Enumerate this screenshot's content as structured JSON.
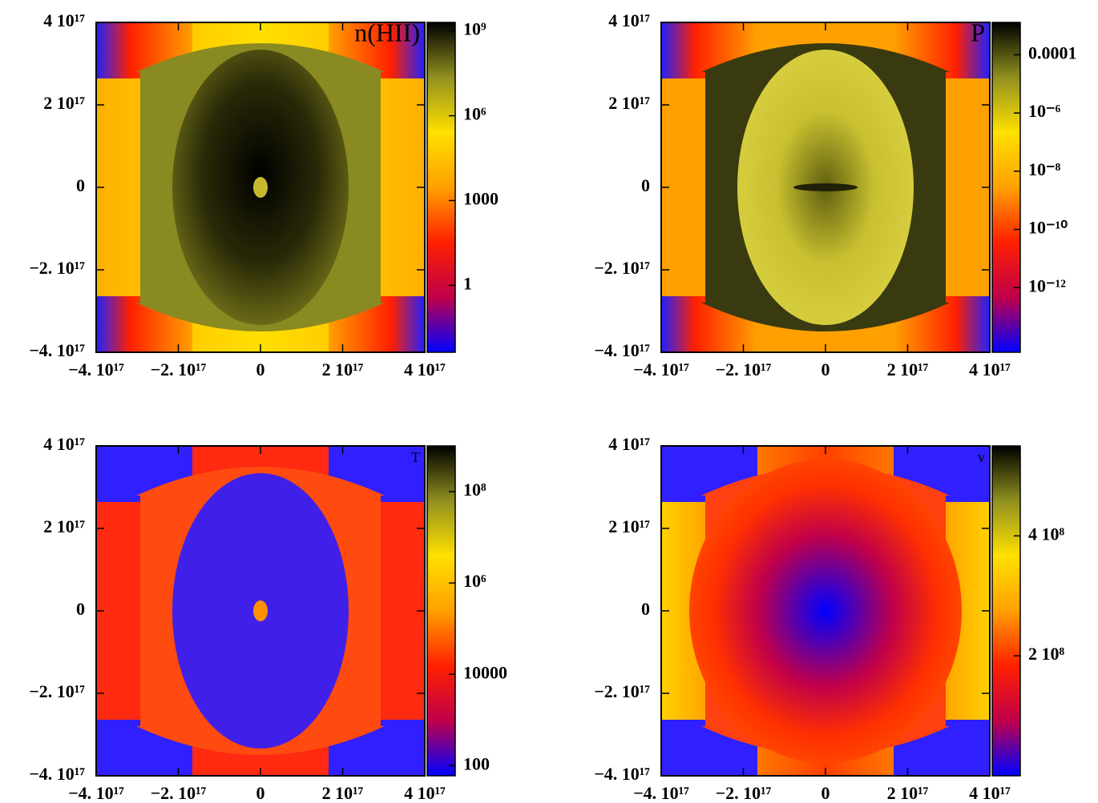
{
  "chart_data": [
    {
      "type": "image",
      "title": "n(HII)",
      "xlim": [
        -4e+17,
        4e+17
      ],
      "ylim": [
        -4e+17,
        4e+17
      ],
      "xticks": [
        {
          "value": -4e+17,
          "label": "−4. 10¹⁷"
        },
        {
          "value": -2e+17,
          "label": "−2. 10¹⁷"
        },
        0,
        {
          "value": 2e+17,
          "label": "2 10¹⁷"
        },
        {
          "value": 4e+17,
          "label": "4 10¹⁷"
        }
      ],
      "yticks": [
        {
          "value": -4e+17,
          "label": "−4. 10¹⁷"
        },
        {
          "value": -2e+17,
          "label": "−2. 10¹⁷"
        },
        0,
        {
          "value": 2e+17,
          "label": "2 10¹⁷"
        },
        {
          "value": 4e+17,
          "label": "4 10¹⁷"
        }
      ],
      "clim": [
        0.0043,
        2000000000
      ],
      "clog": true,
      "cticks": [
        1,
        1000,
        {
          "value": 1000000,
          "label": "10⁶"
        },
        {
          "value": 1000000000,
          "label": "10⁹"
        }
      ],
      "colormap": [
        "#0000ff",
        "#c0004a",
        "#ff2000",
        "#ffa000",
        "#ffe000",
        "#909020",
        "#000000"
      ]
    },
    {
      "type": "image",
      "title": "P",
      "xlim": [
        -4e+17,
        4e+17
      ],
      "ylim": [
        -4e+17,
        4e+17
      ],
      "xticks": [
        {
          "value": -4e+17,
          "label": "−4. 10¹⁷"
        },
        {
          "value": -2e+17,
          "label": "−2. 10¹⁷"
        },
        0,
        {
          "value": 2e+17,
          "label": "2 10¹⁷"
        },
        {
          "value": 4e+17,
          "label": "4 10¹⁷"
        }
      ],
      "yticks": [
        {
          "value": -4e+17,
          "label": "−4. 10¹⁷"
        },
        {
          "value": -2e+17,
          "label": "−2. 10¹⁷"
        },
        0,
        {
          "value": 2e+17,
          "label": "2 10¹⁷"
        },
        {
          "value": 4e+17,
          "label": "4 10¹⁷"
        }
      ],
      "clim": [
        6e-15,
        0.0013
      ],
      "clog": true,
      "cticks": [
        {
          "value": 1e-12,
          "label": "10⁻¹²"
        },
        {
          "value": 1e-10,
          "label": "10⁻¹⁰"
        },
        {
          "value": 1e-08,
          "label": "10⁻⁸"
        },
        {
          "value": 1e-06,
          "label": "10⁻⁶"
        },
        0.0001
      ],
      "colormap": [
        "#0000ff",
        "#c0004a",
        "#ff2000",
        "#ffa000",
        "#ffe000",
        "#909020",
        "#000000"
      ]
    },
    {
      "type": "image",
      "title": "T",
      "xlim": [
        -4e+17,
        4e+17
      ],
      "ylim": [
        -4e+17,
        4e+17
      ],
      "xticks": [
        {
          "value": -4e+17,
          "label": "−4. 10¹⁷"
        },
        {
          "value": -2e+17,
          "label": "−2. 10¹⁷"
        },
        0,
        {
          "value": 2e+17,
          "label": "2 10¹⁷"
        },
        {
          "value": 4e+17,
          "label": "4 10¹⁷"
        }
      ],
      "yticks": [
        {
          "value": -4e+17,
          "label": "−4. 10¹⁷"
        },
        {
          "value": -2e+17,
          "label": "−2. 10¹⁷"
        },
        0,
        {
          "value": 2e+17,
          "label": "2 10¹⁷"
        },
        {
          "value": 4e+17,
          "label": "4 10¹⁷"
        }
      ],
      "clim": [
        60,
        1000000000
      ],
      "clog": true,
      "cticks": [
        100,
        10000,
        {
          "value": 1000000,
          "label": "10⁶"
        },
        {
          "value": 100000000,
          "label": "10⁸"
        }
      ],
      "colormap": [
        "#0000ff",
        "#c0004a",
        "#ff2000",
        "#ffa000",
        "#ffe000",
        "#909020",
        "#000000"
      ]
    },
    {
      "type": "image",
      "title": "v",
      "xlim": [
        -4e+17,
        4e+17
      ],
      "ylim": [
        -4e+17,
        4e+17
      ],
      "xticks": [
        {
          "value": -4e+17,
          "label": "−4. 10¹⁷"
        },
        {
          "value": -2e+17,
          "label": "−2. 10¹⁷"
        },
        0,
        {
          "value": 2e+17,
          "label": "2 10¹⁷"
        },
        {
          "value": 4e+17,
          "label": "4 10¹⁷"
        }
      ],
      "yticks": [
        {
          "value": -4e+17,
          "label": "−4. 10¹⁷"
        },
        {
          "value": -2e+17,
          "label": "−2. 10¹⁷"
        },
        0,
        {
          "value": 2e+17,
          "label": "2 10¹⁷"
        },
        {
          "value": 4e+17,
          "label": "4 10¹⁷"
        }
      ],
      "clim": [
        0,
        550000000
      ],
      "clog": false,
      "cticks": [
        {
          "value": 200000000,
          "label": "2 10⁸"
        },
        {
          "value": 400000000,
          "label": "4 10⁸"
        }
      ],
      "colormap": [
        "#0000ff",
        "#c0004a",
        "#ff2000",
        "#ffa000",
        "#ffe000",
        "#909020",
        "#000000"
      ]
    }
  ]
}
